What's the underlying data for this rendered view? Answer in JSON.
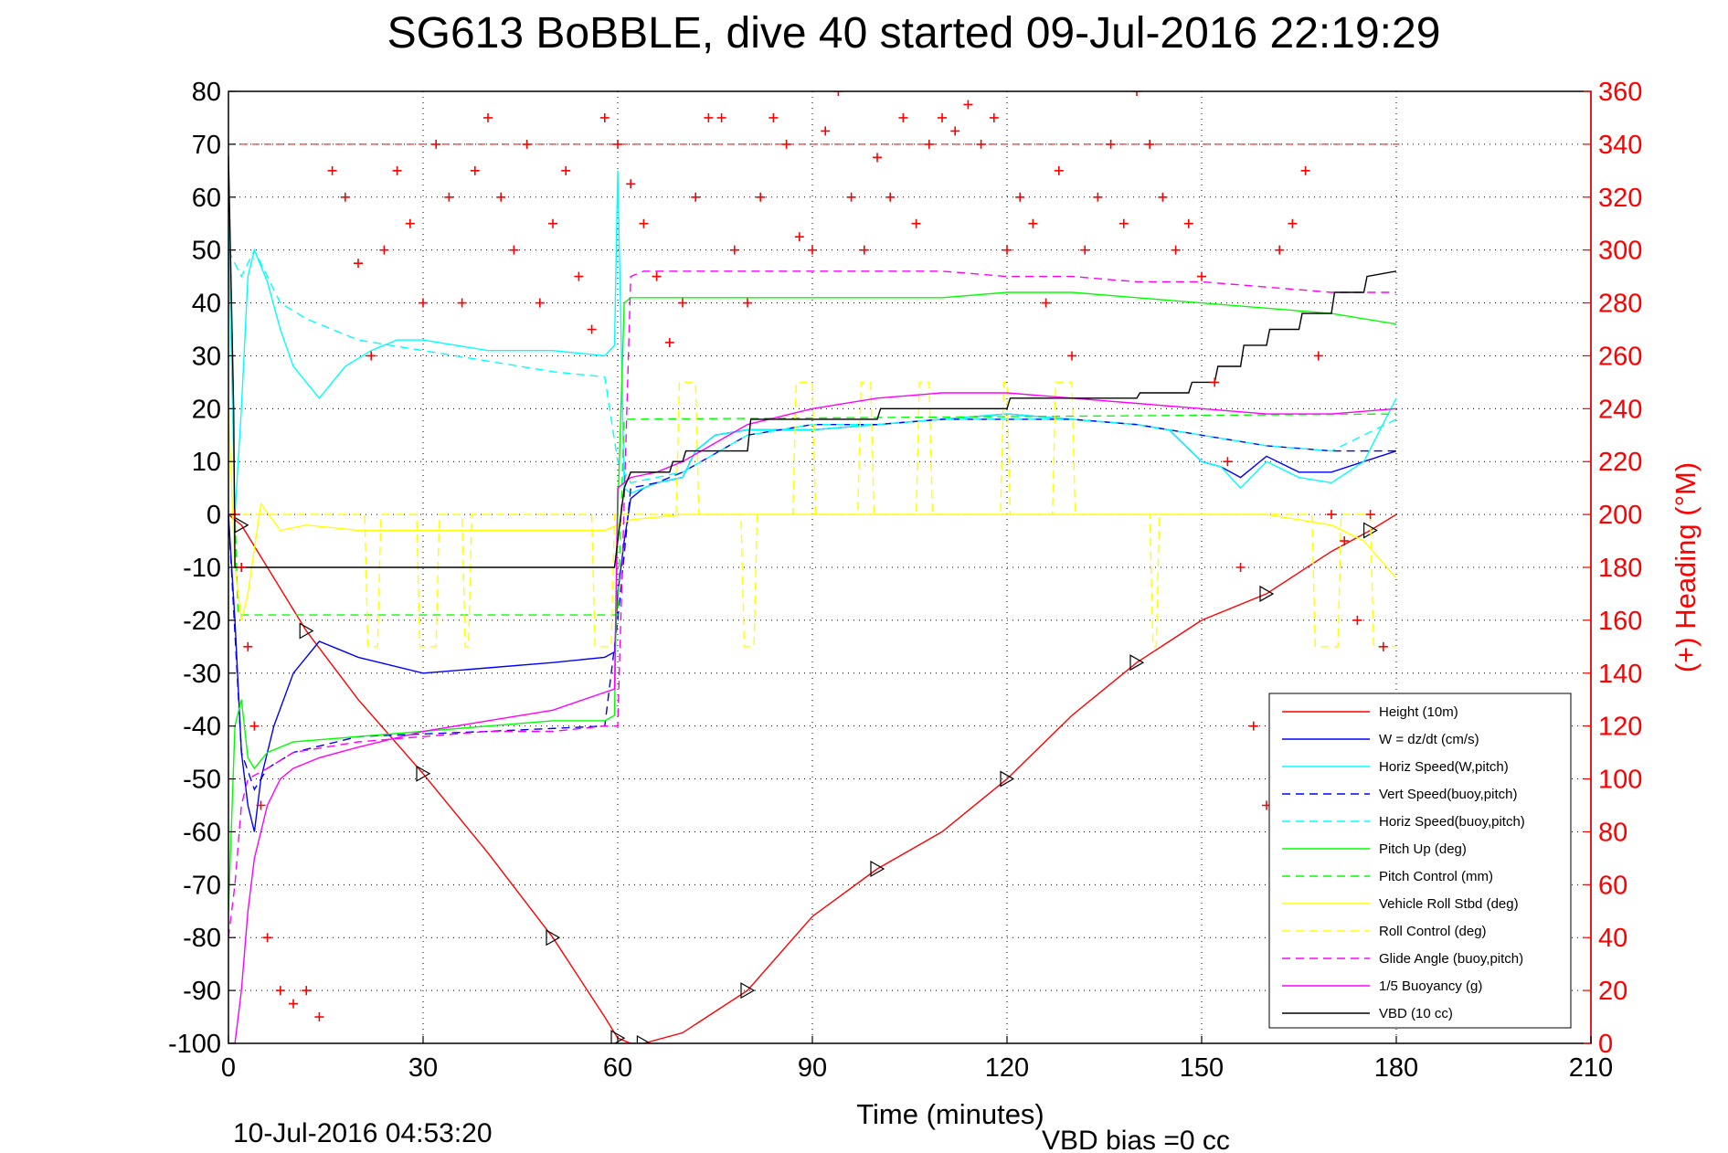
{
  "chart_data": {
    "type": "line",
    "title": "SG613 BoBBLE, dive 40 started 09-Jul-2016 22:19:29",
    "xlabel": "Time (minutes)",
    "ylabel": "",
    "y2label": "(+) Heading (°M)",
    "footer_left": "10-Jul-2016 04:53:20",
    "footer_right": "VBD bias =0 cc",
    "xlim": [
      0,
      210
    ],
    "ylim": [
      -100,
      80
    ],
    "y2lim": [
      0,
      360
    ],
    "xticks": [
      "0",
      "30",
      "60",
      "90",
      "120",
      "150",
      "180",
      "210"
    ],
    "yticks": [
      "80",
      "70",
      "60",
      "50",
      "40",
      "30",
      "20",
      "10",
      "0",
      "-10",
      "-20",
      "-30",
      "-40",
      "-50",
      "-60",
      "-70",
      "-80",
      "-90",
      "-100"
    ],
    "y2ticks": [
      "360",
      "340",
      "320",
      "300",
      "280",
      "260",
      "240",
      "220",
      "200",
      "180",
      "160",
      "140",
      "120",
      "100",
      "80",
      "60",
      "40",
      "20",
      "0"
    ],
    "grid": true,
    "legend_position": "bottom-right",
    "colors": {
      "height": "#ff0000",
      "w": "#0000ff",
      "horiz_speed": "#00ffff",
      "vert_speed_buoy": "#0000ff",
      "horiz_speed_buoy": "#00ffff",
      "pitch_up": "#00ff00",
      "pitch_control": "#00ff00",
      "roll": "#ffff00",
      "roll_control": "#ffff00",
      "glide_angle": "#ff00ff",
      "buoyancy": "#ff00ff",
      "vbd": "#000000",
      "heading": "#ff0000"
    },
    "series": [
      {
        "name": "Height (10m)",
        "style": "solid",
        "color_key": "height",
        "x": [
          0,
          2,
          6,
          12,
          20,
          30,
          40,
          50,
          58,
          60,
          62,
          64,
          70,
          80,
          90,
          100,
          110,
          120,
          130,
          140,
          150,
          160,
          170,
          176,
          180
        ],
        "y": [
          0,
          -2,
          -10,
          -22,
          -35,
          -49,
          -64,
          -80,
          -95,
          -99,
          -100,
          -100,
          -98,
          -90,
          -76,
          -67,
          -60,
          -50,
          -38,
          -28,
          -20,
          -15,
          -7,
          -3,
          0
        ]
      },
      {
        "name": "W = dz/dt (cm/s)",
        "style": "solid",
        "color_key": "w",
        "x": [
          0,
          1,
          2,
          3,
          4,
          5,
          7,
          10,
          14,
          20,
          30,
          40,
          50,
          58,
          59.5,
          60,
          61,
          62,
          64,
          66,
          70,
          72,
          75,
          80,
          90,
          100,
          110,
          120,
          130,
          140,
          145,
          150,
          153,
          156,
          160,
          165,
          170,
          175,
          180
        ],
        "y": [
          0,
          -20,
          -45,
          -55,
          -60,
          -50,
          -40,
          -30,
          -24,
          -27,
          -30,
          -29,
          -28,
          -27,
          -26,
          -15,
          -5,
          3,
          5,
          6,
          7,
          12,
          15,
          16,
          16,
          17,
          18,
          19,
          18,
          17,
          16,
          10,
          9,
          7,
          11,
          8,
          8,
          10,
          12
        ]
      },
      {
        "name": "Horiz Speed(W,pitch)",
        "style": "solid",
        "color_key": "horiz_speed",
        "x": [
          0,
          1,
          2,
          3,
          4,
          6,
          8,
          10,
          14,
          18,
          22,
          26,
          30,
          40,
          50,
          58,
          59.5,
          60,
          61,
          62,
          64,
          66,
          70,
          72,
          75,
          80,
          90,
          100,
          110,
          120,
          130,
          140,
          145,
          150,
          153,
          156,
          160,
          165,
          170,
          175,
          180
        ],
        "y": [
          55,
          0,
          20,
          45,
          50,
          44,
          35,
          28,
          22,
          28,
          31,
          33,
          33,
          31,
          31,
          30,
          32,
          65,
          5,
          4,
          5,
          6,
          7,
          12,
          15,
          16,
          16,
          17,
          18,
          19,
          18,
          17,
          16,
          10,
          9,
          5,
          10,
          7,
          6,
          10,
          22
        ]
      },
      {
        "name": "Vert Speed(buoy,pitch)",
        "style": "dashed",
        "color_key": "vert_speed_buoy",
        "x": [
          0,
          2,
          4,
          6,
          10,
          20,
          40,
          58,
          60,
          62,
          66,
          70,
          80,
          90,
          100,
          110,
          120,
          130,
          140,
          150,
          160,
          170,
          180
        ],
        "y": [
          0,
          -45,
          -52,
          -48,
          -45,
          -42,
          -41,
          -40,
          -20,
          5,
          6,
          8,
          15,
          17,
          17,
          18,
          18,
          18,
          17,
          15,
          13,
          12,
          12
        ]
      },
      {
        "name": "Horiz Speed(buoy,pitch)",
        "style": "dashed",
        "color_key": "horiz_speed_buoy",
        "x": [
          0,
          2,
          4,
          6,
          8,
          12,
          20,
          30,
          40,
          50,
          58,
          60,
          62,
          66,
          70,
          80,
          90,
          100,
          110,
          120,
          130,
          140,
          150,
          160,
          170,
          180
        ],
        "y": [
          50,
          45,
          50,
          45,
          40,
          37,
          33,
          31,
          29,
          27,
          26,
          10,
          6,
          7,
          8,
          15,
          17,
          17,
          18,
          18,
          18,
          17,
          15,
          13,
          12,
          18
        ]
      },
      {
        "name": "Pitch Up (deg)",
        "style": "solid",
        "color_key": "pitch_up",
        "x": [
          0,
          1,
          2,
          3,
          4,
          6,
          10,
          20,
          30,
          40,
          50,
          58,
          59.5,
          60,
          61,
          62,
          66,
          70,
          80,
          90,
          100,
          110,
          120,
          130,
          140,
          150,
          160,
          170,
          175,
          180
        ],
        "y": [
          -75,
          -40,
          -35,
          -46,
          -48,
          -45,
          -43,
          -42,
          -41,
          -40,
          -39,
          -39,
          -38,
          0,
          40,
          41,
          41,
          41,
          41,
          41,
          41,
          41,
          42,
          42,
          41,
          40,
          39,
          38,
          37,
          36
        ]
      },
      {
        "name": "Pitch Control (mm)",
        "style": "dashed",
        "color_key": "pitch_control",
        "x": [
          0,
          1,
          1.5,
          2,
          60,
          61,
          180
        ],
        "y": [
          0,
          0,
          -19,
          -19,
          -19,
          18,
          19
        ]
      },
      {
        "name": "Vehicle Roll Stbd (deg)",
        "style": "solid",
        "color_key": "roll",
        "x": [
          0,
          1,
          2,
          3,
          5,
          8,
          12,
          20,
          30,
          40,
          50,
          58,
          60,
          62,
          70,
          80,
          90,
          100,
          110,
          120,
          130,
          140,
          150,
          160,
          170,
          175,
          180
        ],
        "y": [
          20,
          -10,
          -20,
          -15,
          2,
          -3,
          -2,
          -3,
          -3,
          -3,
          -3,
          -3,
          -2,
          -1,
          0,
          0,
          0,
          0,
          0,
          0,
          0,
          0,
          0,
          0,
          -2,
          -5,
          -12
        ]
      },
      {
        "name": "Roll Control (deg)",
        "style": "dashed",
        "color_key": "roll_control",
        "x": [
          0,
          21,
          21.5,
          23,
          23.5,
          29,
          29.5,
          32,
          32.5,
          36,
          36.5,
          37,
          37.5,
          56,
          56.5,
          59,
          59.5,
          60,
          69,
          69.5,
          72,
          72.5,
          79,
          79.5,
          81,
          81.5,
          87,
          87.5,
          90,
          90.5,
          97,
          97.5,
          99,
          99.5,
          106,
          106.5,
          108,
          108.5,
          119,
          119.5,
          120,
          120.5,
          127,
          127.5,
          130,
          130.5,
          142,
          142.5,
          143,
          143.5,
          167,
          167.5,
          171,
          171.5,
          176,
          176.5,
          180
        ],
        "y": [
          0,
          0,
          -25,
          -25,
          0,
          0,
          -25,
          -25,
          0,
          0,
          -25,
          -25,
          0,
          0,
          -25,
          -25,
          0,
          0,
          0,
          25,
          25,
          0,
          0,
          -25,
          -25,
          0,
          0,
          25,
          25,
          0,
          0,
          25,
          25,
          0,
          0,
          25,
          25,
          0,
          0,
          25,
          25,
          0,
          0,
          25,
          25,
          0,
          0,
          -25,
          -25,
          0,
          0,
          -25,
          -25,
          0,
          0,
          -25,
          -25
        ]
      },
      {
        "name": "Glide Angle (buoy,pitch)",
        "style": "dashed",
        "color_key": "glide_angle",
        "x": [
          0,
          1,
          2,
          3,
          6,
          10,
          20,
          30,
          40,
          50,
          58,
          60,
          62,
          64,
          70,
          80,
          90,
          100,
          110,
          120,
          130,
          140,
          150,
          160,
          170,
          180
        ],
        "y": [
          -80,
          -70,
          -55,
          -50,
          -48,
          -45,
          -43,
          -42,
          -41,
          -41,
          -40,
          -40,
          45,
          46,
          46,
          46,
          46,
          46,
          46,
          45,
          45,
          44,
          44,
          43,
          42,
          42
        ]
      },
      {
        "name": "1/5 Buoyancy (g)",
        "style": "solid",
        "color_key": "buoyancy",
        "x": [
          0,
          1,
          2,
          3,
          4,
          6,
          8,
          10,
          14,
          20,
          30,
          40,
          50,
          59.5,
          60,
          62,
          66,
          70,
          80,
          90,
          100,
          110,
          120,
          130,
          140,
          150,
          160,
          170,
          180
        ],
        "y": [
          -100,
          -100,
          -90,
          -75,
          -65,
          -55,
          -50,
          -48,
          -46,
          -44,
          -41,
          -39,
          -37,
          -33,
          5,
          7,
          8,
          10,
          17,
          20,
          22,
          23,
          23,
          22,
          21,
          20,
          19,
          19,
          20
        ]
      },
      {
        "name": "VBD (10 cc)",
        "style": "solid",
        "color_key": "vbd",
        "x": [
          0,
          0.8,
          1,
          2,
          59.5,
          60,
          61,
          62,
          62.5,
          68,
          68.5,
          70,
          70.5,
          80,
          80.5,
          100,
          100.5,
          120,
          120.5,
          140,
          140.5,
          148,
          148.5,
          152,
          152.5,
          156,
          156.5,
          160,
          160.5,
          165,
          165.5,
          170,
          170.5,
          175,
          175.5,
          180
        ],
        "y": [
          68,
          20,
          -10,
          -10,
          -10,
          -5,
          5,
          8,
          8,
          8,
          10,
          10,
          12,
          12,
          18,
          18,
          20,
          20,
          22,
          22,
          23,
          23,
          25,
          25,
          28,
          28,
          32,
          32,
          35,
          35,
          38,
          38,
          42,
          42,
          45,
          46
        ]
      },
      {
        "name": "Heading",
        "style": "plus",
        "color_key": "heading",
        "axis": "right",
        "x": [
          1,
          2,
          3,
          4,
          5,
          6,
          8,
          10,
          12,
          14,
          16,
          18,
          20,
          22,
          24,
          26,
          28,
          30,
          32,
          34,
          36,
          38,
          40,
          42,
          44,
          46,
          48,
          50,
          52,
          54,
          56,
          58,
          60,
          62,
          64,
          66,
          68,
          70,
          72,
          74,
          76,
          78,
          80,
          82,
          84,
          86,
          88,
          90,
          92,
          94,
          96,
          98,
          100,
          102,
          104,
          106,
          108,
          110,
          112,
          114,
          116,
          118,
          120,
          122,
          124,
          126,
          128,
          130,
          132,
          134,
          136,
          138,
          140,
          142,
          144,
          146,
          148,
          150,
          152,
          154,
          156,
          158,
          160,
          162,
          164,
          166,
          168,
          170,
          172,
          174,
          176,
          178,
          180
        ],
        "y": [
          200,
          180,
          150,
          120,
          90,
          40,
          20,
          15,
          20,
          10,
          330,
          320,
          295,
          260,
          300,
          330,
          310,
          280,
          340,
          320,
          280,
          330,
          350,
          320,
          300,
          340,
          280,
          310,
          330,
          290,
          270,
          350,
          340,
          325,
          310,
          290,
          265,
          280,
          320,
          350,
          350,
          300,
          280,
          320,
          350,
          340,
          305,
          300,
          345,
          360,
          320,
          300,
          335,
          320,
          350,
          310,
          340,
          350,
          345,
          355,
          340,
          350,
          300,
          320,
          310,
          280,
          330,
          260,
          300,
          320,
          340,
          310,
          360,
          340,
          320,
          300,
          310,
          290,
          250,
          220,
          180,
          120,
          90,
          300,
          310,
          330,
          260,
          200,
          190,
          160,
          200,
          150,
          120
        ]
      }
    ]
  }
}
